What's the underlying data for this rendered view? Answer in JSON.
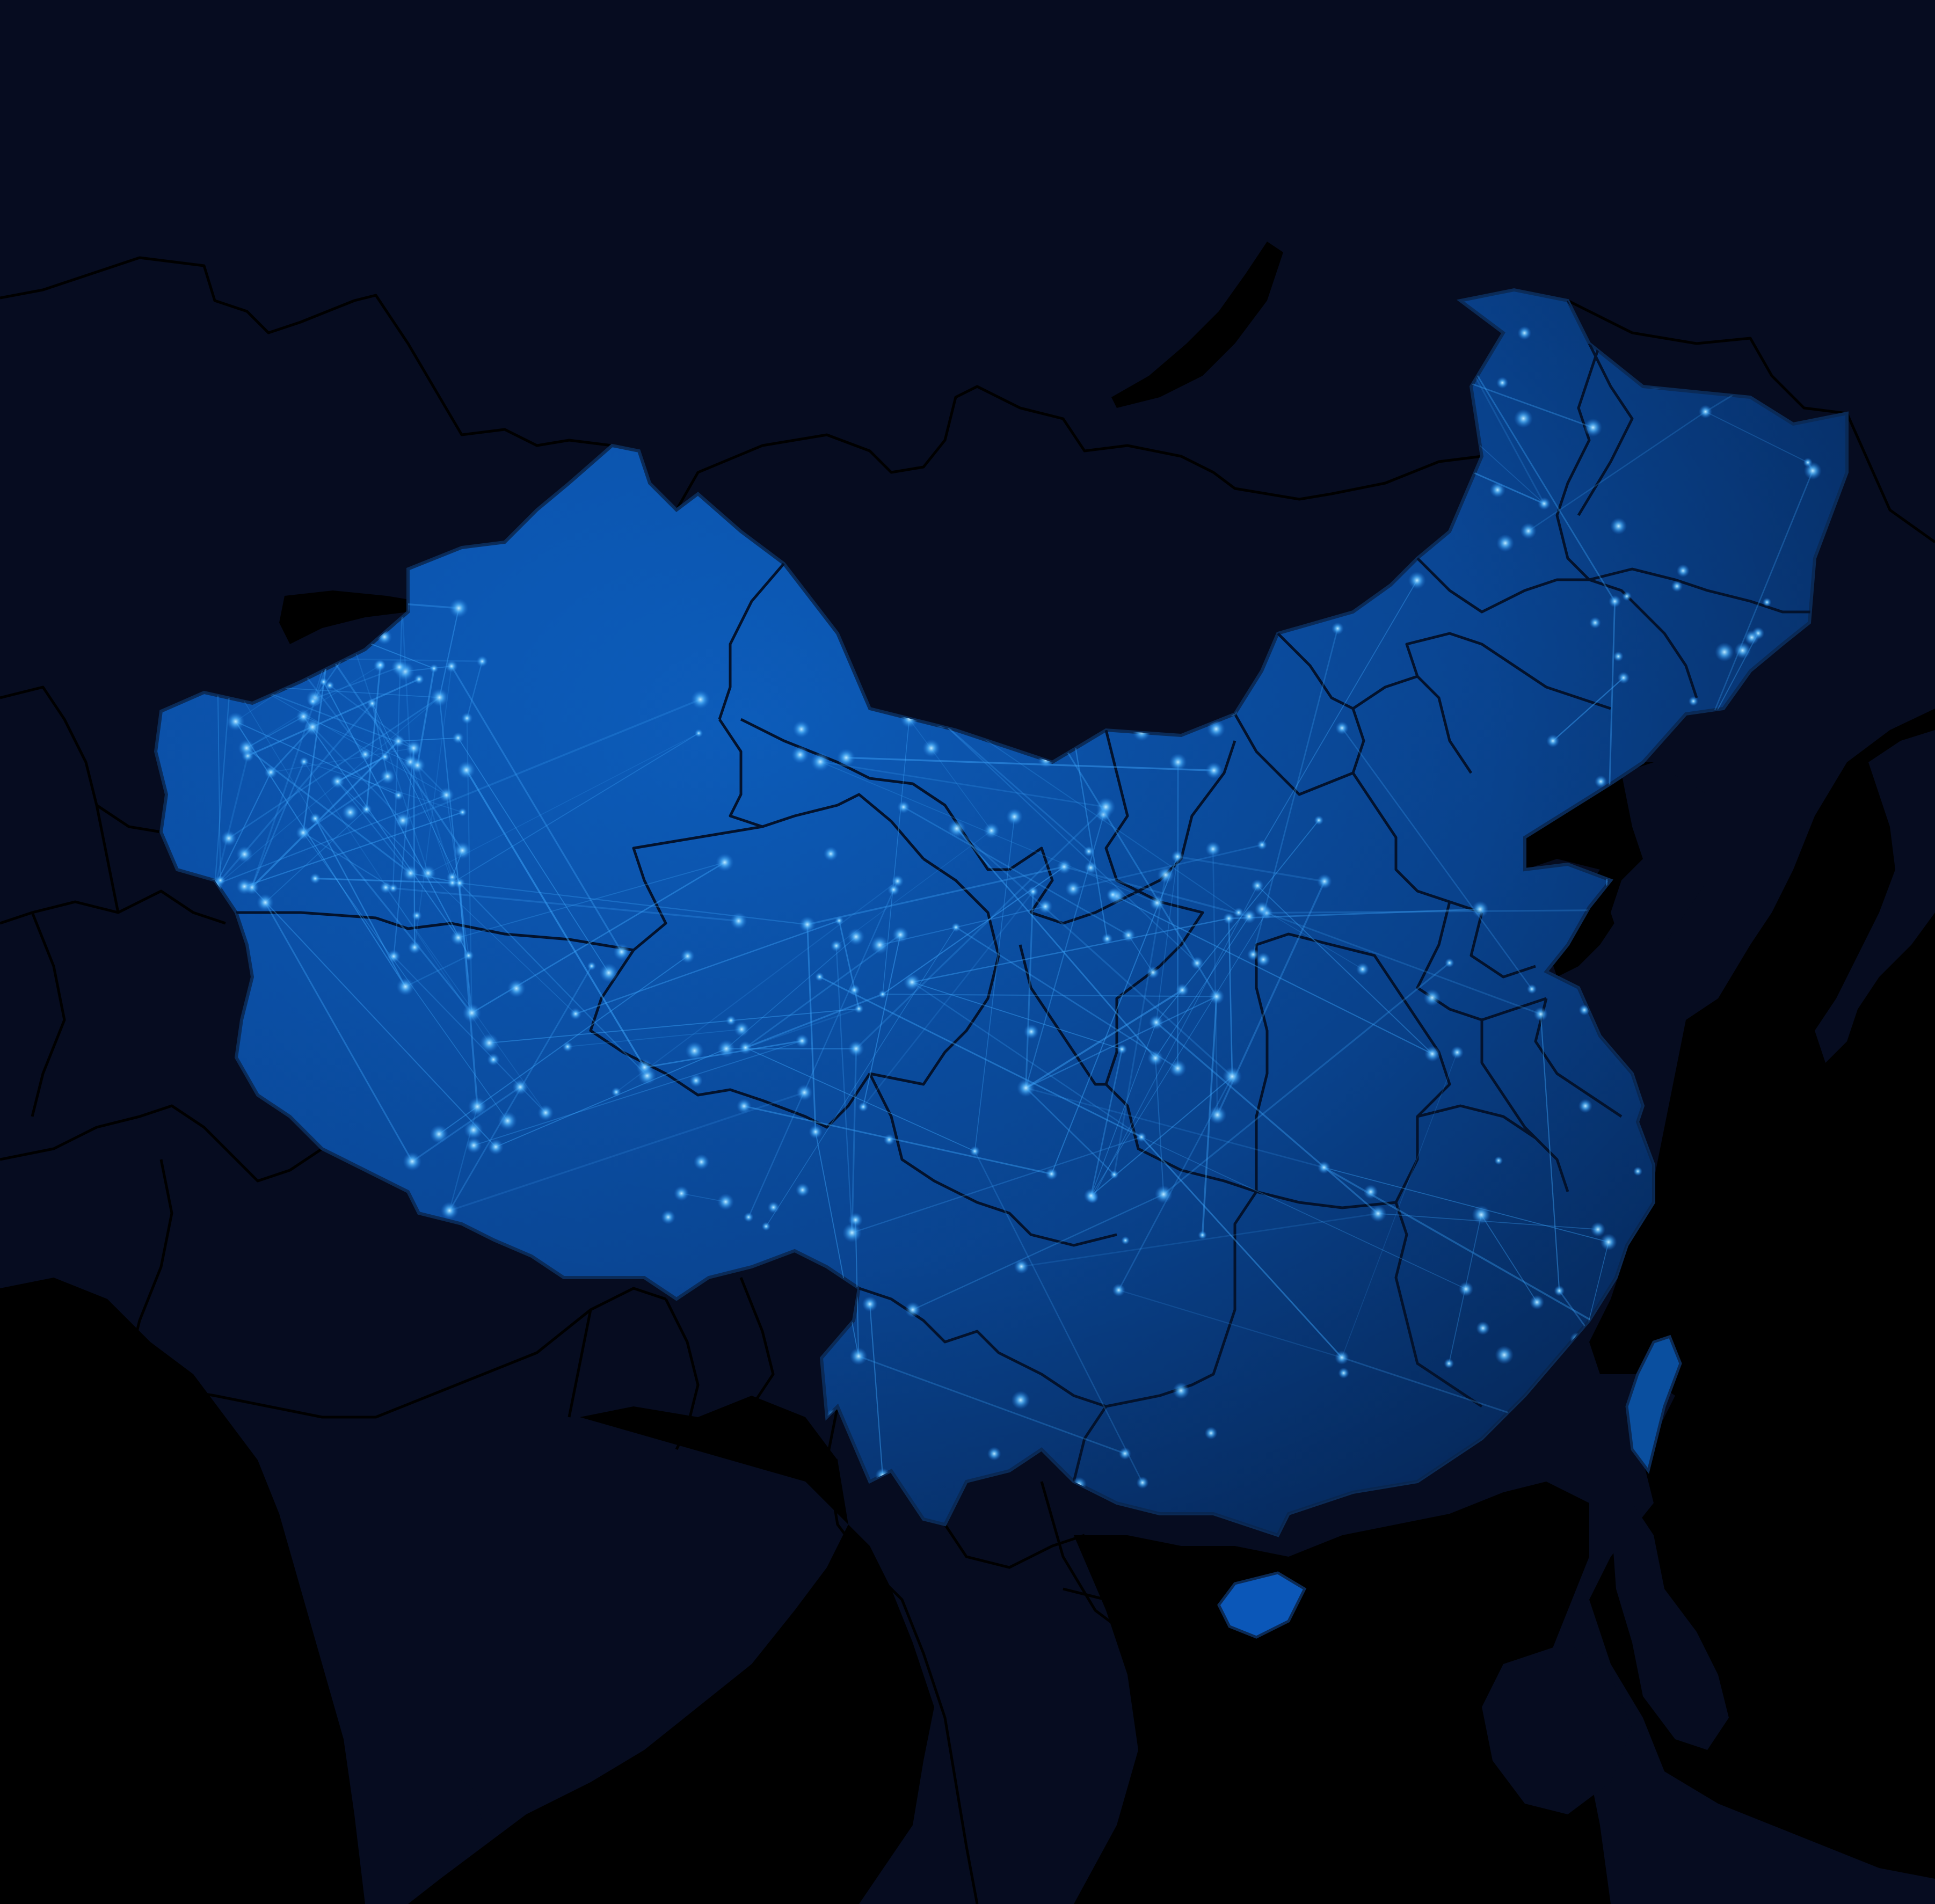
{
  "map": {
    "style": "dark network map",
    "colors": {
      "background": "#050b1d",
      "ocean": "#000000",
      "land": "#07112b",
      "border": "#000000",
      "highlight_fill": "#0b57b8",
      "highlight_deep": "#06244f",
      "province_line": "#04142e",
      "network_line": "#3fa9ff",
      "node_glow": "#7fd4ff"
    },
    "highlighted_region": "China",
    "labels": []
  }
}
